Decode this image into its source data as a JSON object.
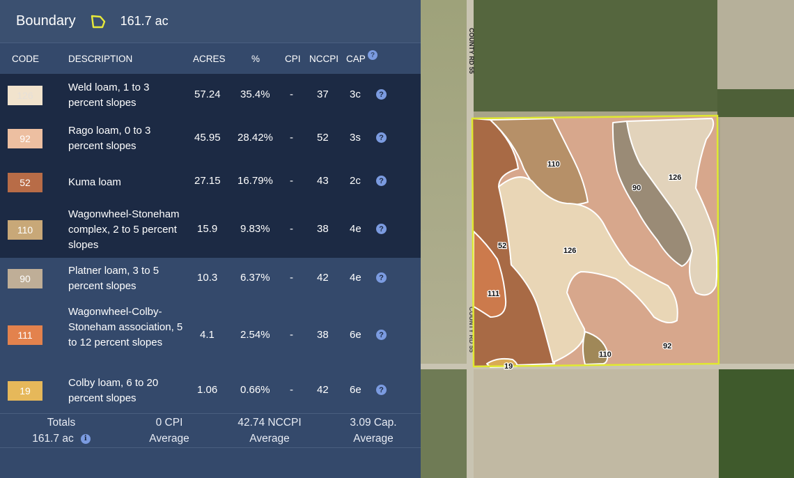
{
  "header": {
    "title": "Boundary",
    "acres": "161.7 ac"
  },
  "columns": {
    "code": "CODE",
    "description": "DESCRIPTION",
    "acres": "ACRES",
    "percent": "%",
    "cpi": "CPI",
    "nccpi": "NCCPI",
    "cap": "CAP"
  },
  "help_glyph": "?",
  "info_glyph": "i",
  "rows": [
    {
      "code": "126",
      "description": "Weld loam, 1 to 3 percent slopes",
      "acres": "57.24",
      "percent": "35.4%",
      "cpi": "-",
      "nccpi": "37",
      "cap": "3c",
      "color": "#f1e3cd",
      "code_color": "#e8ddd0"
    },
    {
      "code": "92",
      "description": "Rago loam, 0 to 3 percent slopes",
      "acres": "45.95",
      "percent": "28.42%",
      "cpi": "-",
      "nccpi": "52",
      "cap": "3s",
      "color": "#edbfa1",
      "code_color": "#ffffff"
    },
    {
      "code": "52",
      "description": "Kuma loam",
      "acres": "27.15",
      "percent": "16.79%",
      "cpi": "-",
      "nccpi": "43",
      "cap": "2c",
      "color": "#b86c47",
      "code_color": "#ffffff"
    },
    {
      "code": "110",
      "description": "Wagonwheel-Stoneham complex, 2 to 5 percent slopes",
      "acres": "15.9",
      "percent": "9.83%",
      "cpi": "-",
      "nccpi": "38",
      "cap": "4e",
      "color": "#c8a878",
      "code_color": "#ffffff"
    },
    {
      "code": "90",
      "description": "Platner loam, 3 to 5 percent slopes",
      "acres": "10.3",
      "percent": "6.37%",
      "cpi": "-",
      "nccpi": "42",
      "cap": "4e",
      "color": "#bfae97",
      "code_color": "#ffffff"
    },
    {
      "code": "111",
      "description": "Wagonwheel-Colby-Stoneham association, 5 to 12 percent slopes",
      "acres": "4.1",
      "percent": "2.54%",
      "cpi": "-",
      "nccpi": "38",
      "cap": "6e",
      "color": "#e3824d",
      "code_color": "#ffffff"
    },
    {
      "code": "19",
      "description": "Colby loam, 6 to 20 percent slopes",
      "acres": "1.06",
      "percent": "0.66%",
      "cpi": "-",
      "nccpi": "42",
      "cap": "6e",
      "color": "#e6b85a",
      "code_color": "#ffffff"
    }
  ],
  "totals": {
    "label": "Totals",
    "acres": "161.7 ac",
    "cpi": "0 CPI",
    "cpi_sub": "Average",
    "nccpi": "42.74 NCCPI",
    "nccpi_sub": "Average",
    "cap": "3.09 Cap.",
    "cap_sub": "Average"
  },
  "map": {
    "road_label_top": "COUNTY RD 55",
    "road_label_bottom": "COUNTY RD 55",
    "boundary_color": "#e0e830",
    "polygon_labels": [
      "110",
      "126",
      "90",
      "52",
      "126",
      "111",
      "110",
      "92",
      "19"
    ]
  }
}
